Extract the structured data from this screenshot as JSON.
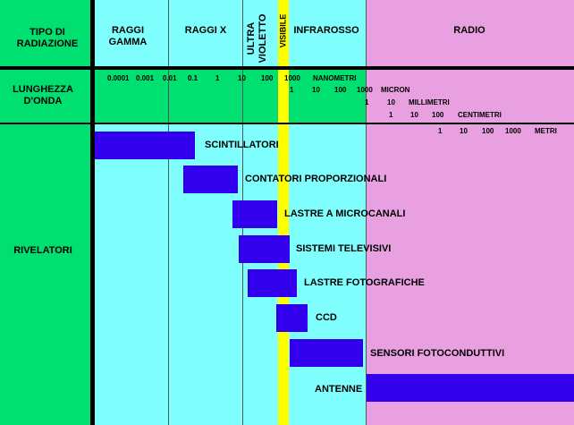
{
  "colors": {
    "left_column": "#00e070",
    "cyan_region": "#80ffff",
    "radio_region": "#e8a0e0",
    "visible_band": "#ffff00",
    "header_green": "#00e070",
    "bar": "#3300ee",
    "divider": "#000000"
  },
  "row_labels": {
    "radiation_type": "TIPO DI RADIAZIONE",
    "wavelength": "LUNGHEZZA D'ONDA",
    "detectors": "RIVELATORI"
  },
  "categories": {
    "gamma": "RAGGI GAMMA",
    "xray": "RAGGI X",
    "uv": "ULTRA VIOLETTO",
    "visible": "VISIBILE",
    "ir": "INFRAROSSO",
    "radio": "RADIO"
  },
  "scale": {
    "nanometri": {
      "ticks": [
        "0.0001",
        "0.001",
        "0.01",
        "0.1",
        "1",
        "10",
        "100",
        "1000"
      ],
      "unit": "NANOMETRI"
    },
    "micron": {
      "ticks": [
        "1",
        "10",
        "100",
        "1000"
      ],
      "unit": "MICRON"
    },
    "millimetri": {
      "ticks": [
        "1",
        "10"
      ],
      "unit": "MILLIMETRI"
    },
    "centimetri": {
      "ticks": [
        "1",
        "10",
        "100"
      ],
      "unit": "CENTIMETRI"
    },
    "metri": {
      "ticks": [
        "1",
        "10",
        "100",
        "1000"
      ],
      "unit": "METRI"
    }
  },
  "detectors": [
    {
      "name": "SCINTILLATORI"
    },
    {
      "name": "CONTATORI PROPORZIONALI"
    },
    {
      "name": "LASTRE A MICROCANALI"
    },
    {
      "name": "SISTEMI TELEVISIVI"
    },
    {
      "name": "LASTRE FOTOGRAFICHE"
    },
    {
      "name": "CCD"
    },
    {
      "name": "SENSORI FOTOCONDUTTIVI"
    },
    {
      "name": "ANTENNE"
    }
  ]
}
